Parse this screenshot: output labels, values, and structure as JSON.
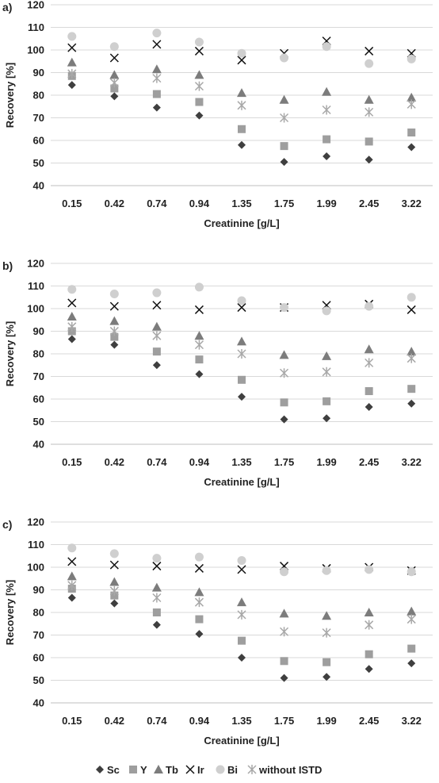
{
  "colors": {
    "Sc": "#3f3f3f",
    "Y": "#9e9e9e",
    "Tb": "#7c7c7c",
    "Ir": "#111111",
    "Bi": "#cfcfcf",
    "without ISTD": "#a8a8a8",
    "grid": "#d9d9d9",
    "axis": "#bfbfbf"
  },
  "legend": {
    "position": "bottom",
    "items": [
      {
        "name": "Sc",
        "marker": "diamond"
      },
      {
        "name": "Y",
        "marker": "square"
      },
      {
        "name": "Tb",
        "marker": "triangle"
      },
      {
        "name": "Ir",
        "marker": "x"
      },
      {
        "name": "Bi",
        "marker": "circle"
      },
      {
        "name": "without ISTD",
        "marker": "star"
      }
    ]
  },
  "chart_data": [
    {
      "type": "scatter",
      "panel_label": "a)",
      "xlabel": "Creatinine [g/L]",
      "ylabel": "Recovery [%]",
      "categories": [
        "0.15",
        "0.42",
        "0.74",
        "0.94",
        "1.35",
        "1.75",
        "1.99",
        "2.45",
        "3.22"
      ],
      "ylim": [
        40,
        120
      ],
      "yticks": [
        "40",
        "50",
        "60",
        "70",
        "80",
        "90",
        "100",
        "110",
        "120"
      ],
      "grid": true,
      "series": [
        {
          "name": "Sc",
          "values": [
            84.5,
            79.5,
            74.5,
            71,
            58,
            50.5,
            53,
            51.5,
            57
          ]
        },
        {
          "name": "Y",
          "values": [
            88.5,
            83,
            80.5,
            77,
            65,
            57.5,
            60.5,
            59.5,
            63.5
          ]
        },
        {
          "name": "Tb",
          "values": [
            94.5,
            89,
            91.5,
            89,
            81,
            78,
            81.5,
            78,
            79
          ]
        },
        {
          "name": "Ir",
          "values": [
            101,
            96.5,
            102.5,
            99.5,
            95.5,
            98.5,
            104,
            99.5,
            98.5
          ]
        },
        {
          "name": "Bi",
          "values": [
            106,
            101.5,
            107.5,
            103.5,
            98.5,
            96.5,
            101.5,
            94,
            96
          ]
        },
        {
          "name": "without ISTD",
          "values": [
            89.5,
            85.5,
            87.5,
            84,
            75.5,
            70,
            73.5,
            72.5,
            76
          ]
        }
      ]
    },
    {
      "type": "scatter",
      "panel_label": "b)",
      "xlabel": "Creatinine [g/L]",
      "ylabel": "Recovery [%]",
      "categories": [
        "0.15",
        "0.42",
        "0.74",
        "0.94",
        "1.35",
        "1.75",
        "1.99",
        "2.45",
        "3.22"
      ],
      "ylim": [
        40,
        120
      ],
      "yticks": [
        "40",
        "50",
        "60",
        "70",
        "80",
        "90",
        "100",
        "110",
        "120"
      ],
      "grid": true,
      "series": [
        {
          "name": "Sc",
          "values": [
            86.5,
            84,
            75,
            71,
            61,
            51,
            51.5,
            56.5,
            58
          ]
        },
        {
          "name": "Y",
          "values": [
            90,
            87.5,
            81,
            77.5,
            68.5,
            58.5,
            59,
            63.5,
            64.5
          ]
        },
        {
          "name": "Tb",
          "values": [
            96.5,
            94.5,
            92,
            88,
            85.5,
            79.5,
            79,
            82,
            81
          ]
        },
        {
          "name": "Ir",
          "values": [
            102.5,
            101,
            101.5,
            99.5,
            100.5,
            100.5,
            101.5,
            102,
            99.5
          ]
        },
        {
          "name": "Bi",
          "values": [
            108.5,
            106.5,
            107,
            109.5,
            103.5,
            100.5,
            99,
            101,
            105
          ]
        },
        {
          "name": "without ISTD",
          "values": [
            92,
            90,
            88,
            84,
            80,
            71.5,
            72,
            76,
            78
          ]
        }
      ]
    },
    {
      "type": "scatter",
      "panel_label": "c)",
      "xlabel": "Creatinine [g/L]",
      "ylabel": "Recovery [%]",
      "categories": [
        "0.15",
        "0.42",
        "0.74",
        "0.94",
        "1.35",
        "1.75",
        "1.99",
        "2.45",
        "3.22"
      ],
      "ylim": [
        40,
        120
      ],
      "yticks": [
        "40",
        "50",
        "60",
        "70",
        "80",
        "90",
        "100",
        "110",
        "120"
      ],
      "grid": true,
      "series": [
        {
          "name": "Sc",
          "values": [
            86.5,
            84,
            74.5,
            70.5,
            60,
            51,
            51.5,
            55,
            57.5
          ]
        },
        {
          "name": "Y",
          "values": [
            90.5,
            87.5,
            80,
            77,
            67.5,
            58.5,
            58,
            61.5,
            64
          ]
        },
        {
          "name": "Tb",
          "values": [
            96,
            93.5,
            91,
            89,
            84.5,
            79.5,
            78.5,
            80,
            80.5
          ]
        },
        {
          "name": "Ir",
          "values": [
            102.5,
            101,
            100.5,
            99.5,
            99,
            100.5,
            99.5,
            100,
            98.5
          ]
        },
        {
          "name": "Bi",
          "values": [
            108.5,
            106,
            104,
            104.5,
            103,
            98,
            98.5,
            99,
            98
          ]
        },
        {
          "name": "without ISTD",
          "values": [
            92,
            89.5,
            86.5,
            84.5,
            79,
            71.5,
            71,
            74.5,
            77
          ]
        }
      ]
    }
  ]
}
